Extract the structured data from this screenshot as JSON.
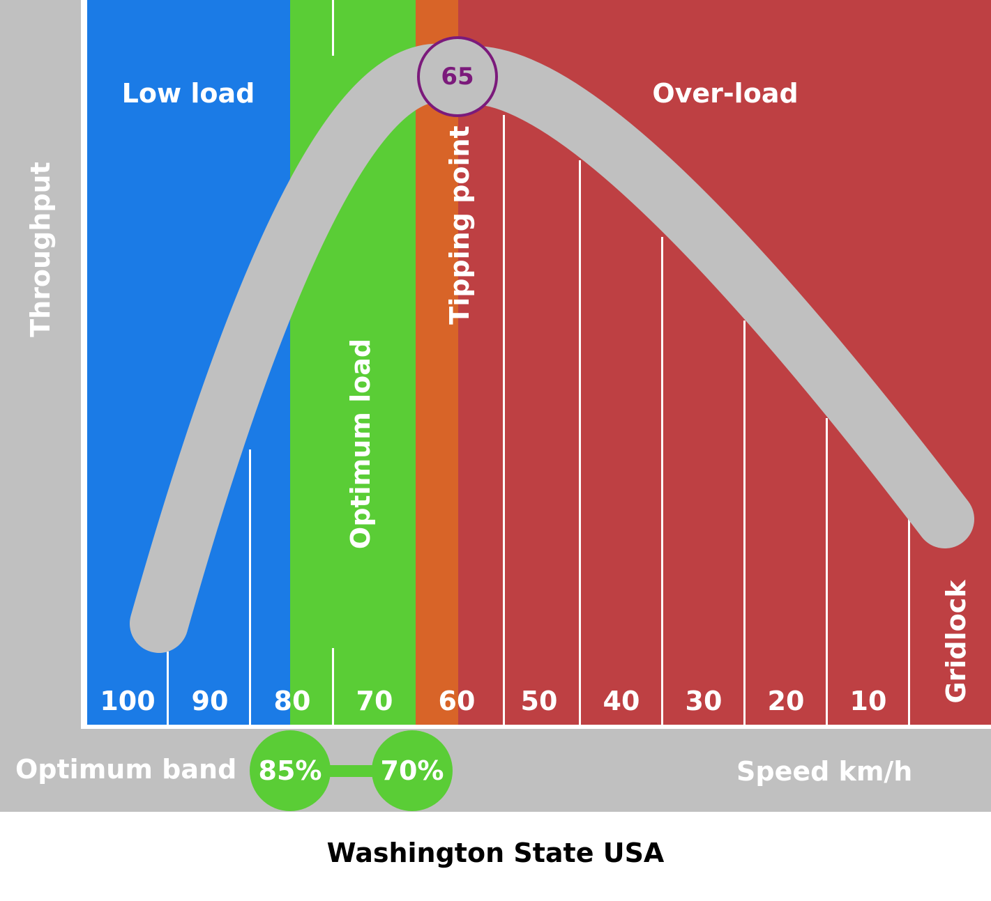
{
  "colors": {
    "frame": "#c0c0c0",
    "low_load": "#1b7be6",
    "optimum": "#5acd36",
    "tipping": "#d86428",
    "over_load": "#be4043",
    "curve": "#c0c0c0",
    "peak_ring": "#7b1a7b",
    "title": "#000000"
  },
  "zones": {
    "low_load": "Low load",
    "optimum_load": "Optimum load",
    "tipping_point": "Tipping point",
    "over_load": "Over-load",
    "gridlock": "Gridlock"
  },
  "y_axis_label": "Throughput",
  "x_axis_label": "Speed km/h",
  "speed_ticks": [
    "100",
    "90",
    "80",
    "70",
    "60",
    "50",
    "40",
    "30",
    "20",
    "10"
  ],
  "peak_label": "65",
  "optimum_band": {
    "label": "Optimum band",
    "high": "85%",
    "low": "70%"
  },
  "title": "Washington State USA"
}
